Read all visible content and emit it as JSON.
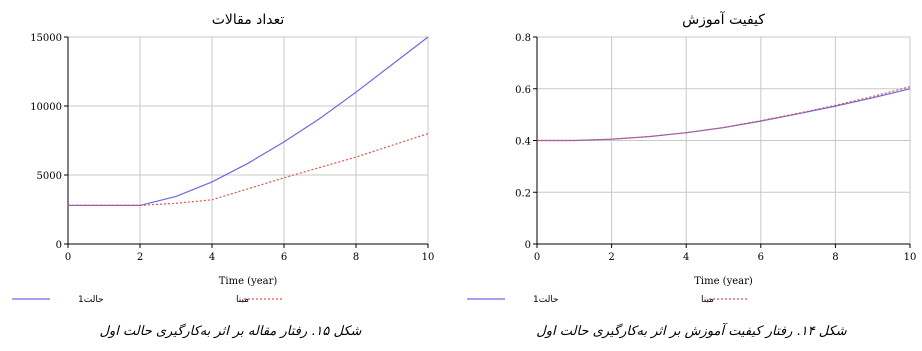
{
  "chart_data": [
    {
      "type": "line",
      "title": "تعداد مقالات",
      "xlabel": "Time (year)",
      "ylabel": "",
      "xlim": [
        0,
        10
      ],
      "ylim": [
        0,
        15000
      ],
      "xticks": [
        0,
        2,
        4,
        6,
        8,
        10
      ],
      "yticks": [
        0,
        5000,
        10000,
        15000
      ],
      "grid": true,
      "legend_position": "bottom",
      "series": [
        {
          "name": "حالت1",
          "style": "solid",
          "color": "#6a6ae8",
          "x": [
            0,
            1,
            2,
            3,
            4,
            5,
            6,
            7,
            8,
            9,
            10
          ],
          "values": [
            2800,
            2800,
            2800,
            3450,
            4500,
            5850,
            7400,
            9100,
            11000,
            13000,
            15000
          ]
        },
        {
          "name": "مبنا",
          "style": "dotted",
          "color": "#e8504a",
          "x": [
            0,
            1,
            2,
            3,
            4,
            5,
            6,
            7,
            8,
            9,
            10
          ],
          "values": [
            2800,
            2800,
            2800,
            2950,
            3200,
            4000,
            4800,
            5550,
            6300,
            7150,
            8000
          ]
        }
      ],
      "caption": "شکل ۱۵. رفتار مقاله بر اثر به‌کارگیری حالت اول"
    },
    {
      "type": "line",
      "title": "کیفیت آموزش",
      "xlabel": "Time (year)",
      "ylabel": "",
      "xlim": [
        0,
        10
      ],
      "ylim": [
        0,
        0.8
      ],
      "xticks": [
        0,
        2,
        4,
        6,
        8,
        10
      ],
      "yticks": [
        0,
        0.2,
        0.4,
        0.6,
        0.8
      ],
      "grid": true,
      "legend_position": "bottom",
      "series": [
        {
          "name": "حالت1",
          "style": "solid",
          "color": "#6a6ae8",
          "x": [
            0,
            1,
            2,
            3,
            4,
            5,
            6,
            7,
            8,
            9,
            10
          ],
          "values": [
            0.4,
            0.4,
            0.405,
            0.415,
            0.43,
            0.45,
            0.475,
            0.503,
            0.533,
            0.565,
            0.6
          ]
        },
        {
          "name": "مبنا",
          "style": "dotted",
          "color": "#e8504a",
          "x": [
            0,
            1,
            2,
            3,
            4,
            5,
            6,
            7,
            8,
            9,
            10
          ],
          "values": [
            0.4,
            0.4,
            0.405,
            0.415,
            0.43,
            0.45,
            0.477,
            0.505,
            0.536,
            0.57,
            0.608
          ]
        }
      ],
      "caption": "شکل ۱۴. رفتار کیفیت آموزش بر اثر به‌کارگیری حالت اول"
    }
  ]
}
